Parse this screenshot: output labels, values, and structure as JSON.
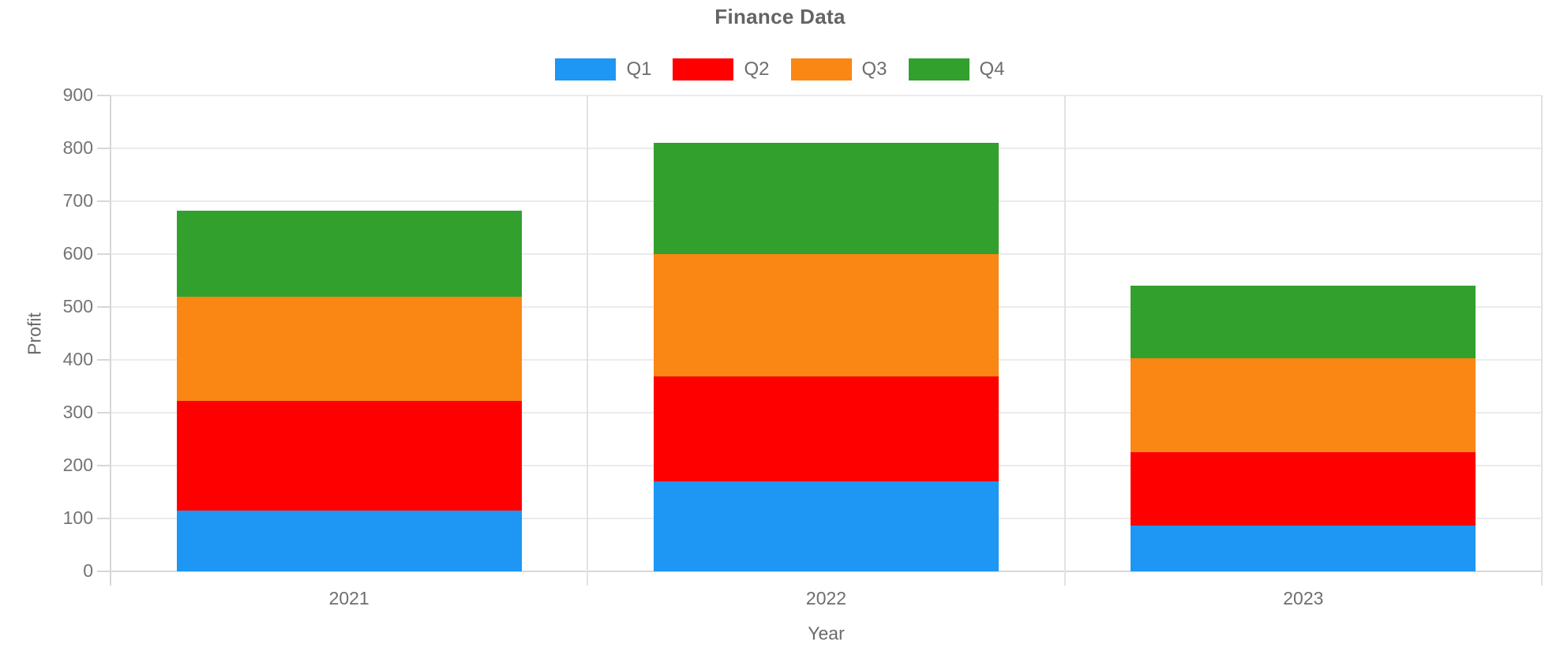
{
  "title": "Finance Data",
  "colors": {
    "background": "#FFFFFF",
    "grid": "#EBEBEB",
    "axis_line": "#D7D7D7",
    "separator": "#E2E2E2",
    "title_text": "#646464",
    "tick_text": "#747474",
    "axis_title_text": "#6A6A6A",
    "legend_text": "#6E6E6E"
  },
  "legend": {
    "items": [
      {
        "label": "Q1",
        "color": "#1E96F3"
      },
      {
        "label": "Q2",
        "color": "#FF0000"
      },
      {
        "label": "Q3",
        "color": "#FA8614"
      },
      {
        "label": "Q4",
        "color": "#32A02D"
      }
    ]
  },
  "chart_data": {
    "type": "bar",
    "stacked": true,
    "title": "Finance Data",
    "xlabel": "Year",
    "ylabel": "Profit",
    "categories": [
      "2021",
      "2022",
      "2023"
    ],
    "series": [
      {
        "name": "Q1",
        "color": "#1E96F3",
        "values": [
          115,
          170,
          87
        ]
      },
      {
        "name": "Q2",
        "color": "#FF0000",
        "values": [
          208,
          198,
          138
        ]
      },
      {
        "name": "Q3",
        "color": "#FA8614",
        "values": [
          197,
          232,
          178
        ]
      },
      {
        "name": "Q4",
        "color": "#32A02D",
        "values": [
          162,
          210,
          137
        ]
      }
    ],
    "stack_totals": [
      682,
      810,
      540
    ],
    "ylim": [
      0,
      900
    ],
    "ytick_step": 100,
    "grid": true,
    "legend_position": "top"
  }
}
